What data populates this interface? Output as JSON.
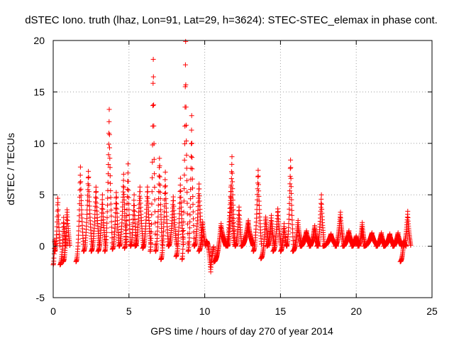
{
  "chart_data": {
    "type": "scatter",
    "title": "dSTEC Iono. truth (lhaz, Lon=91, Lat=29, h=3624): STEC-STEC_elemax in phase cont.",
    "xlabel": "GPS time / hours of day 270 of year 2014",
    "ylabel": "dSTEC  / TECUs",
    "xlim": [
      0,
      25
    ],
    "ylim": [
      -5,
      20
    ],
    "xticks": [
      0,
      5,
      10,
      15,
      20,
      25
    ],
    "yticks": [
      -5,
      0,
      5,
      10,
      15,
      20
    ],
    "grid": true,
    "marker": "+",
    "marker_color": "#ff0000",
    "arcs": [
      {
        "start": 0.0,
        "end": 0.15,
        "vstart": -1.8,
        "vpeak": 0.8,
        "vend": 0.0
      },
      {
        "start": 0.1,
        "end": 0.45,
        "vstart": -0.5,
        "vpeak": 5.0,
        "vend": 0.0
      },
      {
        "start": 0.45,
        "end": 0.85,
        "vstart": -1.8,
        "vpeak": 2.8,
        "vend": 0.0
      },
      {
        "start": 0.65,
        "end": 1.1,
        "vstart": -1.5,
        "vpeak": 3.8,
        "vend": 0.0
      },
      {
        "start": 1.5,
        "end": 2.0,
        "vstart": -1.5,
        "vpeak": 7.7,
        "vend": 0.0
      },
      {
        "start": 2.0,
        "end": 2.55,
        "vstart": -0.5,
        "vpeak": 7.6,
        "vend": 0.0
      },
      {
        "start": 2.5,
        "end": 3.05,
        "vstart": -0.5,
        "vpeak": 6.0,
        "vend": 0.0
      },
      {
        "start": 2.95,
        "end": 3.45,
        "vstart": -0.5,
        "vpeak": 5.0,
        "vend": 0.0
      },
      {
        "start": 3.4,
        "end": 3.9,
        "vstart": -0.5,
        "vpeak": 13.3,
        "vend": 0.0
      },
      {
        "start": 3.9,
        "end": 4.35,
        "vstart": -0.3,
        "vpeak": 5.5,
        "vend": 0.0
      },
      {
        "start": 4.35,
        "end": 4.85,
        "vstart": 0.0,
        "vpeak": 7.0,
        "vend": 0.0
      },
      {
        "start": 4.7,
        "end": 5.1,
        "vstart": -0.2,
        "vpeak": 8.0,
        "vend": 0.0
      },
      {
        "start": 5.1,
        "end": 5.5,
        "vstart": 0.0,
        "vpeak": 5.0,
        "vend": 0.0
      },
      {
        "start": 5.4,
        "end": 5.95,
        "vstart": 0.0,
        "vpeak": 6.0,
        "vend": 0.0
      },
      {
        "start": 5.9,
        "end": 6.45,
        "vstart": -0.2,
        "vpeak": 6.0,
        "vend": 0.0
      },
      {
        "start": 6.4,
        "end": 6.75,
        "vstart": -0.5,
        "vpeak": 19.4,
        "vend": 0.0
      },
      {
        "start": 6.75,
        "end": 7.2,
        "vstart": -0.5,
        "vpeak": 9.0,
        "vend": 0.0
      },
      {
        "start": 7.1,
        "end": 7.6,
        "vstart": -1.3,
        "vpeak": 7.2,
        "vend": 0.0
      },
      {
        "start": 7.6,
        "end": 8.15,
        "vstart": 0.0,
        "vpeak": 5.0,
        "vend": 0.0
      },
      {
        "start": 8.1,
        "end": 8.6,
        "vstart": -1.0,
        "vpeak": 6.6,
        "vend": 0.0
      },
      {
        "start": 8.5,
        "end": 8.9,
        "vstart": -1.3,
        "vpeak": 19.9,
        "vend": 0.0
      },
      {
        "start": 8.9,
        "end": 9.3,
        "vstart": -0.5,
        "vpeak": 12.7,
        "vend": 0.0
      },
      {
        "start": 9.3,
        "end": 9.85,
        "vstart": 0.0,
        "vpeak": 6.3,
        "vend": 0.0
      },
      {
        "start": 9.6,
        "end": 10.05,
        "vstart": -0.5,
        "vpeak": 2.5,
        "vend": 0.0
      },
      {
        "start": 10.1,
        "end": 10.6,
        "vstart": 0.5,
        "vpeak": -2.5,
        "vend": 0.0
      },
      {
        "start": 10.6,
        "end": 11.4,
        "vstart": -1.5,
        "vpeak": 2.2,
        "vend": 0.0
      },
      {
        "start": 11.4,
        "end": 11.95,
        "vstart": 0.0,
        "vpeak": 6.0,
        "vend": 0.0
      },
      {
        "start": 11.5,
        "end": 12.0,
        "vstart": 0.0,
        "vpeak": 8.7,
        "vend": 0.0
      },
      {
        "start": 12.0,
        "end": 12.45,
        "vstart": 0.0,
        "vpeak": 4.0,
        "vend": 0.0
      },
      {
        "start": 12.4,
        "end": 13.2,
        "vstart": 0.0,
        "vpeak": 2.5,
        "vend": 0.0
      },
      {
        "start": 13.2,
        "end": 13.75,
        "vstart": -0.5,
        "vpeak": 7.7,
        "vend": 0.0
      },
      {
        "start": 13.7,
        "end": 14.25,
        "vstart": -1.2,
        "vpeak": 3.0,
        "vend": 0.0
      },
      {
        "start": 14.1,
        "end": 14.6,
        "vstart": 0.0,
        "vpeak": 3.0,
        "vend": 0.0
      },
      {
        "start": 14.5,
        "end": 15.05,
        "vstart": -0.5,
        "vpeak": 3.8,
        "vend": 0.0
      },
      {
        "start": 15.0,
        "end": 15.4,
        "vstart": -0.5,
        "vpeak": 2.2,
        "vend": 0.0
      },
      {
        "start": 15.4,
        "end": 15.85,
        "vstart": 0.0,
        "vpeak": 8.8,
        "vend": 0.0
      },
      {
        "start": 15.8,
        "end": 16.4,
        "vstart": -0.5,
        "vpeak": 2.5,
        "vend": 0.0
      },
      {
        "start": 16.3,
        "end": 17.0,
        "vstart": 0.0,
        "vpeak": 1.5,
        "vend": 0.0
      },
      {
        "start": 16.9,
        "end": 17.5,
        "vstart": 0.0,
        "vpeak": 2.0,
        "vend": 0.0
      },
      {
        "start": 17.4,
        "end": 17.9,
        "vstart": 0.0,
        "vpeak": 5.0,
        "vend": 0.0
      },
      {
        "start": 17.8,
        "end": 18.7,
        "vstart": 0.0,
        "vpeak": 1.2,
        "vend": 0.0
      },
      {
        "start": 18.6,
        "end": 19.2,
        "vstart": 0.0,
        "vpeak": 3.3,
        "vend": 0.0
      },
      {
        "start": 19.1,
        "end": 19.8,
        "vstart": 0.0,
        "vpeak": 1.5,
        "vend": 0.0
      },
      {
        "start": 19.7,
        "end": 20.2,
        "vstart": 0.0,
        "vpeak": 1.0,
        "vend": 0.0
      },
      {
        "start": 20.1,
        "end": 20.6,
        "vstart": 0.0,
        "vpeak": 2.3,
        "vend": 0.0
      },
      {
        "start": 20.5,
        "end": 21.4,
        "vstart": 0.0,
        "vpeak": 1.3,
        "vend": 0.0
      },
      {
        "start": 21.3,
        "end": 21.9,
        "vstart": 0.0,
        "vpeak": 1.3,
        "vend": 0.0
      },
      {
        "start": 21.8,
        "end": 22.5,
        "vstart": 0.0,
        "vpeak": 1.2,
        "vend": 0.0
      },
      {
        "start": 22.4,
        "end": 23.0,
        "vstart": 0.0,
        "vpeak": 1.3,
        "vend": 0.0
      },
      {
        "start": 22.9,
        "end": 23.3,
        "vstart": -1.5,
        "vpeak": 0.5,
        "vend": 0.0
      },
      {
        "start": 23.1,
        "end": 23.6,
        "vstart": 0.0,
        "vpeak": 3.4,
        "vend": 0.0
      }
    ]
  }
}
